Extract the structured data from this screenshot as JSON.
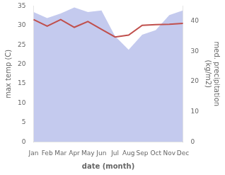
{
  "chart_data": {
    "type": "line",
    "categories": [
      "Jan",
      "Feb",
      "Mar",
      "Apr",
      "May",
      "Jun",
      "Jul",
      "Aug",
      "Sep",
      "Oct",
      "Nov",
      "Dec"
    ],
    "series": [
      {
        "type": "area",
        "color": "#b0b8e8",
        "axis": "y2",
        "values": [
          43.0,
          41.0,
          42.5,
          44.5,
          43.0,
          43.5,
          35.0,
          30.5,
          35.5,
          37.0,
          42.0,
          43.5
        ]
      },
      {
        "type": "line",
        "color": "#c0504d",
        "values": [
          31.5,
          29.8,
          31.5,
          29.5,
          31.0,
          29.0,
          27.0,
          27.5,
          30.0,
          30.2,
          30.3,
          30.5
        ]
      }
    ],
    "xlabel": "date (month)",
    "ylabel": "max temp (C)",
    "y2label": "med. precipitation\n(kg/m2)",
    "ylim": [
      0,
      35
    ],
    "yticks": [
      0,
      5,
      10,
      15,
      20,
      25,
      30,
      35
    ],
    "y2lim": [
      0,
      45
    ],
    "y2ticks": [
      0,
      10,
      20,
      30,
      40
    ],
    "grid": false
  }
}
